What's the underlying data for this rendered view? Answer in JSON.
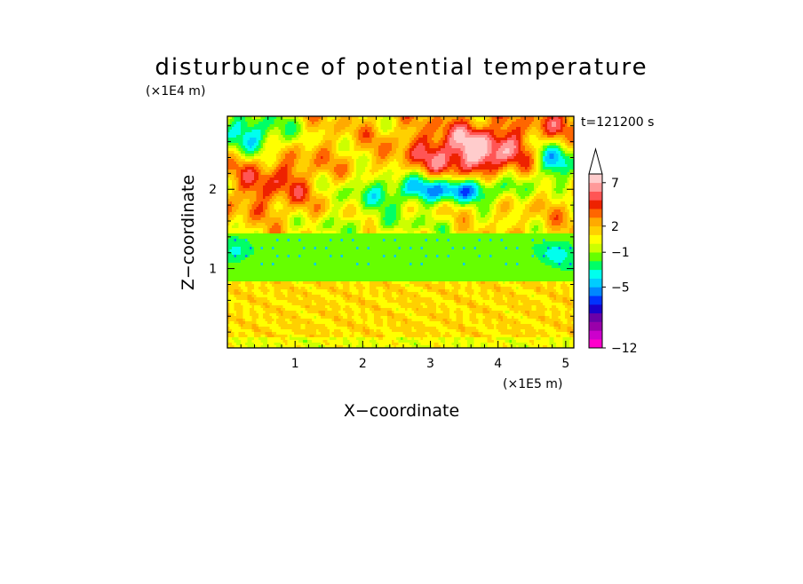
{
  "chart_data": {
    "type": "heatmap",
    "title": "disturbunce of potential temperature",
    "xlabel": "X−coordinate",
    "ylabel": "Z−coordinate",
    "x_unit": "(×1E5 m)",
    "y_unit": "(×1E4 m)",
    "time_label": "t=121200 s",
    "xlim": [
      0,
      5.12
    ],
    "ylim": [
      0,
      2.92
    ],
    "x_ticks": [
      1,
      2,
      3,
      4,
      5
    ],
    "x_tick_labels": [
      "1",
      "2",
      "3",
      "4",
      "5"
    ],
    "y_ticks": [
      1,
      2
    ],
    "y_tick_labels": [
      "1",
      "2"
    ],
    "colorbar": {
      "levels": [
        -12,
        -11,
        -10,
        -9,
        -8,
        -7,
        -6,
        -5,
        -4,
        -3,
        -2,
        -1,
        0,
        1,
        2,
        3,
        4,
        5,
        6,
        7,
        8,
        9
      ],
      "tick_values": [
        -12,
        -5,
        -1,
        2,
        7
      ],
      "tick_labels": [
        "−12",
        "−5",
        "−1",
        "2",
        "7"
      ],
      "colors": [
        "#ff00cc",
        "#cc00cc",
        "#9900aa",
        "#6a00a8",
        "#1a00cc",
        "#0033ff",
        "#0088ff",
        "#00ccff",
        "#00ffee",
        "#00ff66",
        "#66ff00",
        "#ccff00",
        "#ffff00",
        "#ffd000",
        "#ffaa00",
        "#ff6600",
        "#ee2200",
        "#ff5555",
        "#ff9999",
        "#ffcccc"
      ],
      "extend": "max"
    }
  }
}
